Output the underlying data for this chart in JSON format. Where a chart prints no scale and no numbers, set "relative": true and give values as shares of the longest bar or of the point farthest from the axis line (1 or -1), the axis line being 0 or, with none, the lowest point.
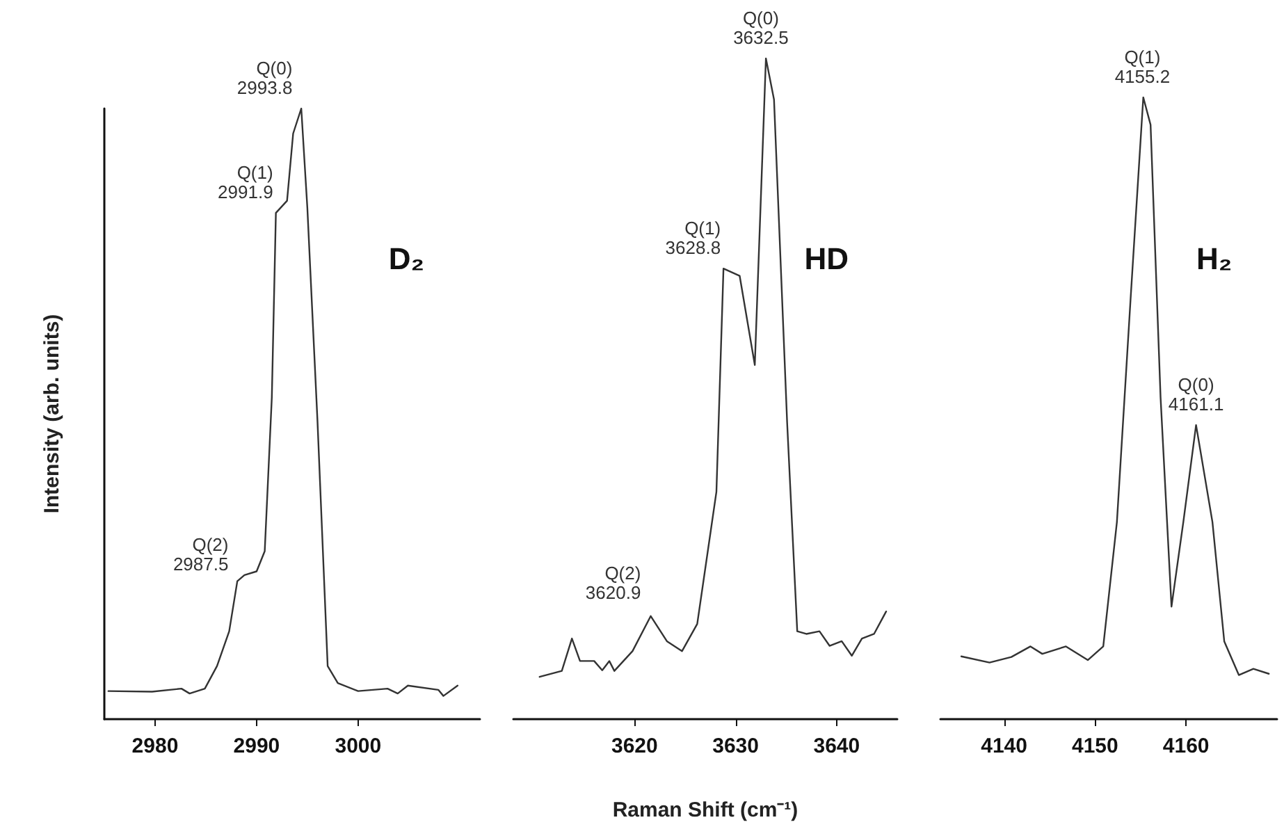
{
  "chart_data": [
    {
      "type": "line",
      "title": "D₂",
      "ylabel": "Intensity (arb. units)",
      "relative": true,
      "xlim": [
        2975,
        3012
      ],
      "xticks": [
        2980,
        2990,
        3000
      ],
      "tick_labels": "x",
      "grid": false,
      "marker": "none",
      "line_style": "solid",
      "series": [
        {
          "color": "#333333",
          "x": [
            2975.4,
            2979.7,
            2982.6,
            2983.4,
            2984.9,
            2986.1,
            2987.3,
            2988.1,
            2988.8,
            2990.0,
            2990.8,
            2991.5,
            2991.9,
            2993.0,
            2993.6,
            2994.4,
            2995.0,
            2996.0,
            2997.0,
            2998.0,
            3000.0,
            3002.9,
            3003.9,
            3004.9,
            3007.9,
            3008.4,
            3009.8
          ],
          "values": [
            0.046,
            0.045,
            0.05,
            0.042,
            0.05,
            0.087,
            0.144,
            0.226,
            0.236,
            0.242,
            0.275,
            0.527,
            0.829,
            0.849,
            0.959,
            1,
            0.837,
            0.487,
            0.087,
            0.059,
            0.046,
            0.05,
            0.042,
            0.055,
            0.048,
            0.038,
            0.055
          ]
        }
      ],
      "annotations": [
        {
          "text": "Q(0)\n2993.8",
          "x": 2993.8,
          "y": 1
        },
        {
          "text": "Q(1)\n2991.9",
          "x": 2991.9,
          "y": 0.829
        },
        {
          "text": "Q(2)\n2987.5",
          "x": 2987.5,
          "y": 0.22
        }
      ]
    },
    {
      "type": "line",
      "title": "HD",
      "xlabel": "Raman Shift (cm⁻¹)",
      "relative": true,
      "xlim": [
        3608,
        3646
      ],
      "xticks": [
        3620,
        3630,
        3640
      ],
      "tick_labels": "x",
      "grid": false,
      "marker": "none",
      "line_style": "solid",
      "series": [
        {
          "color": "#333333",
          "x": [
            3610.6,
            3612.8,
            3613.8,
            3614.6,
            3616.0,
            3616.8,
            3617.5,
            3618.0,
            3619.8,
            3621.6,
            3623.2,
            3624.7,
            3626.2,
            3628.1,
            3628.8,
            3630.4,
            3631.9,
            3633.0,
            3633.8,
            3635.1,
            3636.1,
            3637.0,
            3638.3,
            3639.3,
            3640.5,
            3641.5,
            3642.5,
            3643.7,
            3644.9
          ],
          "values": [
            0.064,
            0.073,
            0.122,
            0.088,
            0.088,
            0.074,
            0.088,
            0.073,
            0.103,
            0.156,
            0.118,
            0.103,
            0.144,
            0.344,
            0.682,
            0.671,
            0.536,
            1,
            0.938,
            0.449,
            0.133,
            0.129,
            0.133,
            0.111,
            0.118,
            0.096,
            0.122,
            0.129,
            0.163
          ]
        }
      ],
      "annotations": [
        {
          "text": "Q(0)\n3632.5",
          "x": 3632.5,
          "y": 1
        },
        {
          "text": "Q(1)\n3628.8",
          "x": 3628.8,
          "y": 0.682
        },
        {
          "text": "Q(2)\n3620.9",
          "x": 3620.9,
          "y": 0.16
        }
      ]
    },
    {
      "type": "line",
      "title": "H₂",
      "relative": true,
      "xlim": [
        4133,
        4170
      ],
      "xticks": [
        4140,
        4150,
        4160
      ],
      "tick_labels": "x",
      "grid": false,
      "marker": "none",
      "line_style": "solid",
      "series": [
        {
          "color": "#333333",
          "x": [
            4135.3,
            4138.4,
            4140.8,
            4142.9,
            4144.2,
            4146.8,
            4149.2,
            4150.9,
            4152.4,
            4153.9,
            4155.3,
            4156.1,
            4157.2,
            4158.4,
            4159.7,
            4161.1,
            4162.9,
            4164.2,
            4165.8,
            4167.4,
            4169.1
          ],
          "values": [
            0.101,
            0.091,
            0.1,
            0.117,
            0.105,
            0.117,
            0.095,
            0.117,
            0.317,
            0.675,
            1,
            0.956,
            0.517,
            0.181,
            0.317,
            0.473,
            0.317,
            0.125,
            0.071,
            0.081,
            0.073
          ]
        }
      ],
      "annotations": [
        {
          "text": "Q(1)\n4155.2",
          "x": 4155.2,
          "y": 1
        },
        {
          "text": "Q(0)\n4161.1",
          "x": 4161.1,
          "y": 0.473
        }
      ]
    }
  ]
}
